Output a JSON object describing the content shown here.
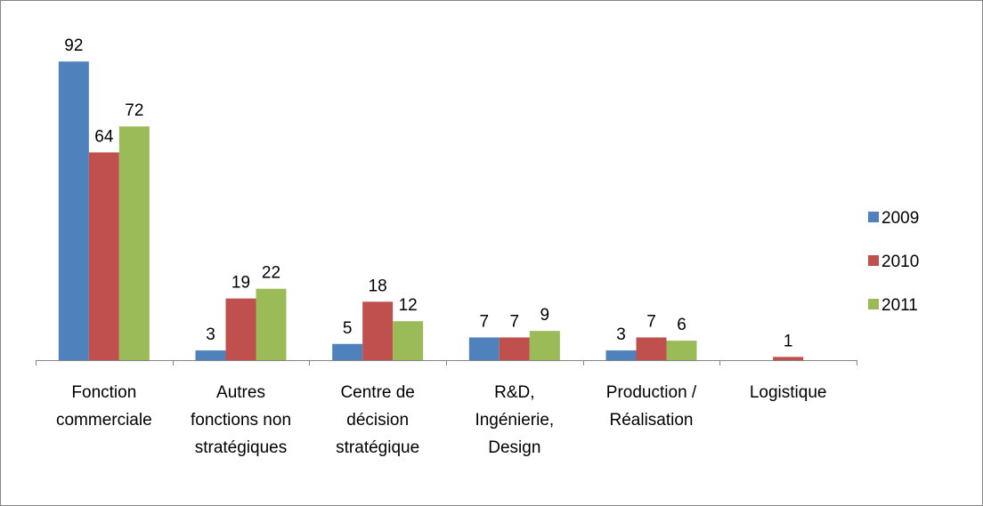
{
  "chart_data": {
    "type": "bar",
    "categories": [
      "Fonction commerciale",
      "Autres fonctions non stratégiques",
      "Centre de décision stratégique",
      "R&D, Ingénierie, Design",
      "Production / Réalisation",
      "Logistique"
    ],
    "series": [
      {
        "name": "2009",
        "color": "#4f81bd",
        "values": [
          92,
          3,
          5,
          7,
          3,
          null
        ]
      },
      {
        "name": "2010",
        "color": "#c0504d",
        "values": [
          64,
          19,
          18,
          7,
          7,
          1
        ]
      },
      {
        "name": "2011",
        "color": "#9bbb59",
        "values": [
          72,
          22,
          12,
          9,
          6,
          null
        ]
      }
    ],
    "ylim": [
      0,
      100
    ],
    "legend": "right"
  }
}
